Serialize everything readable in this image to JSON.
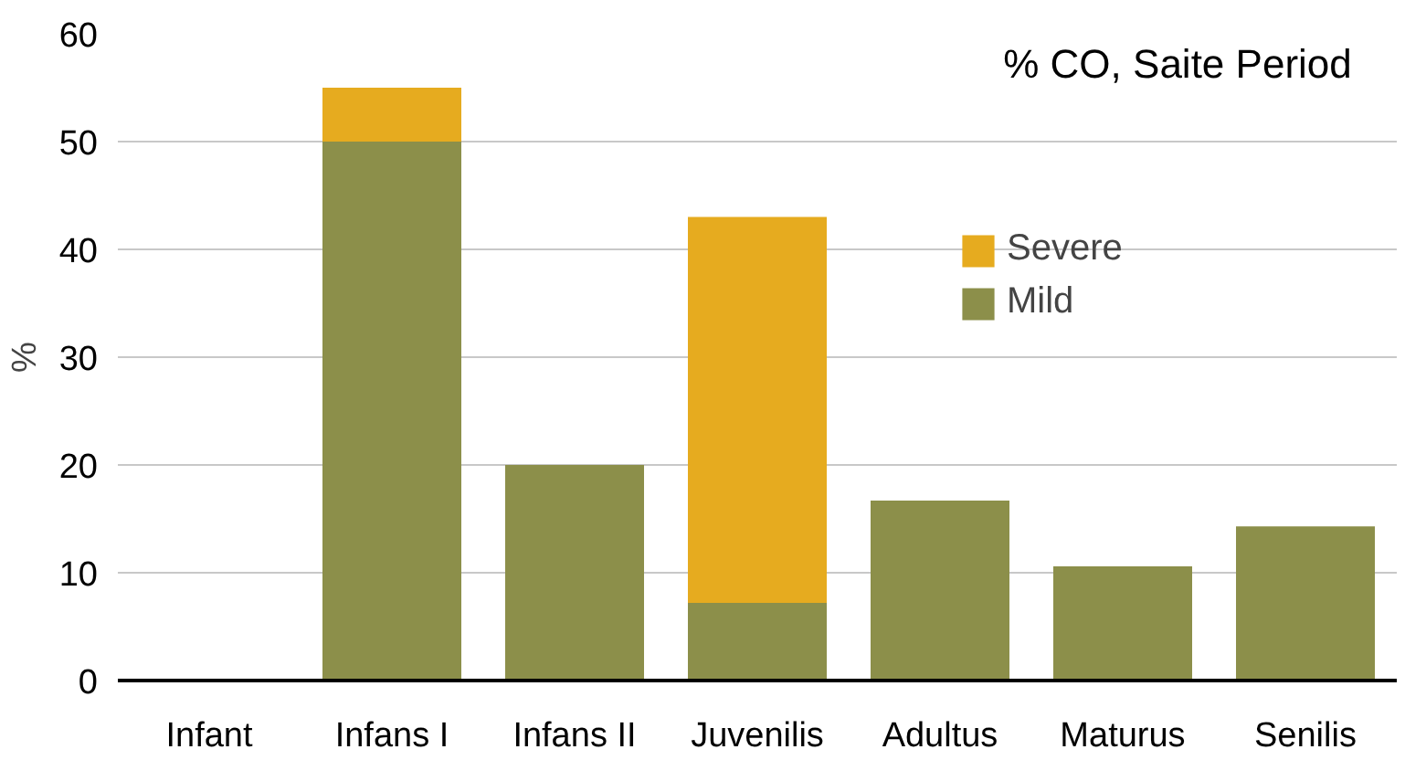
{
  "chart_data": {
    "type": "bar",
    "title": "% CO, Saite Period",
    "ylabel": "%",
    "categories": [
      "Infant",
      "Infans I",
      "Infans II",
      "Juvenilis",
      "Adultus",
      "Maturus",
      "Senilis"
    ],
    "stacked": true,
    "series": [
      {
        "name": "Mild",
        "color": "#8c8f4a",
        "values": [
          0,
          50,
          20,
          7.2,
          16.7,
          10.6,
          14.3
        ]
      },
      {
        "name": "Severe",
        "color": "#e6ab1f",
        "values": [
          0,
          5,
          0,
          35.8,
          0,
          0,
          0
        ]
      }
    ],
    "ylim": [
      0,
      60
    ],
    "yticks": [
      0,
      10,
      20,
      30,
      40,
      50,
      60
    ],
    "grid": "y",
    "legend": "top right"
  }
}
